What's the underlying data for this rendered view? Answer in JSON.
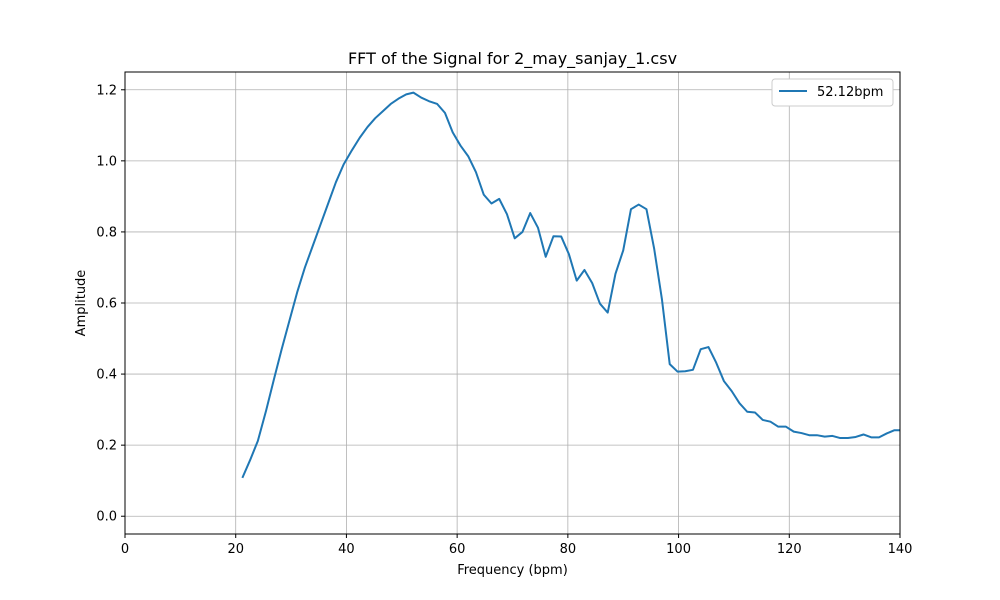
{
  "chart_data": {
    "type": "line",
    "title": "FFT of the Signal for 2_may_sanjay_1.csv",
    "xlabel": "Frequency (bpm)",
    "ylabel": "Amplitude",
    "xlim": [
      0,
      140
    ],
    "ylim": [
      -0.05,
      1.25
    ],
    "x_ticks": [
      0,
      20,
      40,
      60,
      80,
      100,
      120,
      140
    ],
    "y_ticks": [
      0.0,
      0.2,
      0.4,
      0.6,
      0.8,
      1.0,
      1.2
    ],
    "x_tick_labels": [
      "0",
      "20",
      "40",
      "60",
      "80",
      "100",
      "120",
      "140"
    ],
    "y_tick_labels": [
      "0.0",
      "0.2",
      "0.4",
      "0.6",
      "0.8",
      "1.0",
      "1.2"
    ],
    "grid": true,
    "legend_position": "top-right",
    "series": [
      {
        "name": "52.12bpm",
        "color": "#1f77b4",
        "x": [
          21.2,
          22.6,
          24.0,
          25.5,
          26.9,
          28.3,
          29.7,
          31.1,
          32.5,
          33.9,
          35.3,
          36.7,
          38.1,
          39.5,
          41.0,
          42.4,
          43.8,
          45.2,
          46.6,
          48.0,
          49.4,
          50.8,
          52.1,
          53.5,
          54.9,
          56.4,
          57.8,
          59.2,
          60.6,
          62.0,
          63.4,
          64.8,
          66.2,
          67.6,
          69.0,
          70.4,
          71.8,
          73.2,
          74.6,
          76.0,
          77.4,
          78.8,
          80.2,
          81.6,
          83.0,
          84.4,
          85.8,
          87.2,
          88.6,
          90.0,
          91.4,
          92.8,
          94.2,
          95.6,
          97.0,
          98.4,
          99.8,
          101.2,
          102.6,
          104.0,
          105.4,
          106.8,
          108.2,
          109.6,
          111.0,
          112.4,
          113.8,
          115.2,
          116.6,
          118.0,
          119.4,
          120.8,
          122.2,
          123.6,
          125.0,
          126.4,
          127.8,
          129.2,
          130.6,
          132.0,
          133.4,
          134.8,
          136.2,
          137.6,
          139.0,
          140.0
        ],
        "y": [
          0.108,
          0.158,
          0.212,
          0.298,
          0.385,
          0.47,
          0.55,
          0.63,
          0.7,
          0.76,
          0.82,
          0.88,
          0.94,
          0.99,
          1.03,
          1.065,
          1.095,
          1.12,
          1.14,
          1.16,
          1.175,
          1.187,
          1.192,
          1.178,
          1.168,
          1.16,
          1.135,
          1.08,
          1.043,
          1.013,
          0.968,
          0.905,
          0.88,
          0.893,
          0.85,
          0.782,
          0.8,
          0.853,
          0.812,
          0.73,
          0.788,
          0.787,
          0.737,
          0.663,
          0.693,
          0.656,
          0.598,
          0.573,
          0.682,
          0.748,
          0.864,
          0.877,
          0.864,
          0.752,
          0.61,
          0.428,
          0.407,
          0.408,
          0.412,
          0.47,
          0.476,
          0.432,
          0.38,
          0.352,
          0.318,
          0.294,
          0.292,
          0.271,
          0.266,
          0.252,
          0.252,
          0.238,
          0.234,
          0.228,
          0.228,
          0.224,
          0.226,
          0.22,
          0.22,
          0.223,
          0.23,
          0.222,
          0.222,
          0.233,
          0.242,
          0.242
        ]
      }
    ]
  }
}
